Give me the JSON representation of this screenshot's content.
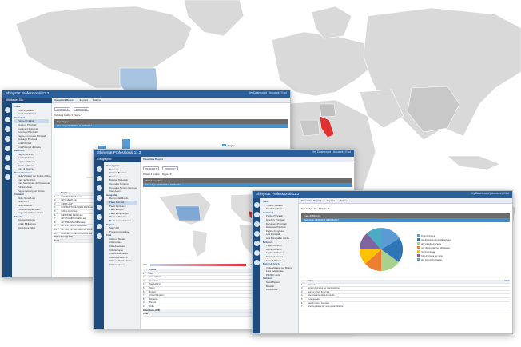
{
  "windows": [
    {
      "app_title": "Shinystat Professional 11.3",
      "user_menu": "My Dashboard | Account | Esci",
      "section": "Attività del Sito",
      "tabs": [
        "Visualizza Report",
        "Esporta",
        "Stampa"
      ],
      "filter": {
        "date_from": "01/06/2017",
        "date_to": "30/06/2017",
        "options": [
          "Tabella",
          "Grafico",
          "Pagine"
        ]
      },
      "panel_title": "Top Pagine",
      "panel_subtitle": "Data range: 01/06/2017 to 30/06/2017",
      "tree": [
        {
          "group": "Visite",
          "items": [
            "Visite & Visitatori",
            "Trend dei Visitatori"
          ]
        },
        {
          "group": "Contenuti",
          "items": [
            "Pagine Principali",
            "Directory Principali",
            "Documenti Principali",
            "Download Principali",
            "Pagine di Ingresso Principali",
            "Messaggi Principali",
            "Link Principali",
            "Link Principali di Uscita"
          ]
        },
        {
          "group": "Referrers",
          "items": [
            "Pagine Referrer",
            "Domini Referrer",
            "Engine di Ricerca",
            "Parole di Ricerca",
            "Frasi di Ricerca"
          ]
        },
        {
          "group": "Motori di ricerca",
          "items": [
            "Visite/Visitatori per Motore di Ricerca",
            "Frasi nell'Indirizzo",
            "Frasi Selezionate dall'Assistente",
            "Pubblici Utenti",
            "Pagine Landing per Motore"
          ]
        },
        {
          "group": "Visitatori",
          "items": [
            "Visite Nuove/Loro",
            "Visite in CT",
            "Visite Ripetute",
            "Provenienza per Stato",
            "Lingue/Locali/Fuso Orario"
          ]
        },
        {
          "group": "Sistema",
          "items": [
            "Browser/Versione",
            "Link in Bibliografia",
            "Risoluzione Video"
          ]
        }
      ],
      "chart": {
        "categories": [
          "1",
          "2",
          "3"
        ],
        "legend": [
          "Pagine",
          "Visualizzazioni"
        ]
      },
      "table_header": [
        "",
        "Pagina",
        "",
        ""
      ],
      "rows": [
        [
          "1",
          "/CONTENITORE 1.asp",
          "",
          ""
        ],
        [
          "2",
          "/SITO MENU.asp",
          "",
          ""
        ],
        [
          "3",
          "/INDEX.ASP",
          "",
          ""
        ],
        [
          "4",
          "/CONTENITORE NEWS MENU.asp",
          "",
          ""
        ],
        [
          "5",
          "/CATALOGO/.asp",
          "",
          ""
        ],
        [
          "6",
          "/GESTIONE MENU.asp",
          "",
          ""
        ],
        [
          "7",
          "/SITO/COMPRA MENU.asp",
          "",
          ""
        ],
        [
          "8",
          "/SITO/SERVIZI MENU.asp",
          "",
          ""
        ],
        [
          "9",
          "/SITO STORICO MENU.asp",
          "",
          ""
        ],
        [
          "10",
          "/SITO/ATTIVITA/FIDELIZZA MENU.asp",
          "",
          ""
        ],
        [
          "11",
          "/CONTENITORE CATALOGO.asp",
          "",
          ""
        ]
      ],
      "footer": [
        "Other Items (1258)",
        "Total"
      ]
    },
    {
      "app_title": "Shinystat Professional 11.3",
      "user_menu": "My Dashboard | Account | Esci",
      "section": "Geographic",
      "tabs": [
        "Visualizza Report"
      ],
      "filter": {
        "date_from": "01/06/2017",
        "date_to": "30/06/2017",
        "options": [
          "Tabella",
          "Grafico",
          "Regioni"
        ]
      },
      "panel_title": "World Countries",
      "panel_subtitle": "Data range: 01/06/2017 to 30/06/2017",
      "tree": [
        {
          "group": "User Agents",
          "items": [
            "Browsers",
            "Versioni Browser",
            "Browser",
            "Browser Maiuscoli",
            "Operating Systems",
            "Operating System Versions",
            "User Agents"
          ]
        },
        {
          "group": "Geografia",
          "items": [
            "Regioni del Mondo",
            "Paesi Mondiali",
            "Paesi Continenti",
            "Paesi Europei",
            "Paesi Extraeuropei",
            "Paesi dell'Unione",
            "Paesi non Comunitari"
          ]
        },
        {
          "group": "Regioni",
          "items": [
            "Stati Uniti",
            "Provincia Canadese"
          ]
        },
        {
          "group": "Città",
          "items": [
            "Città nel Mondo",
            "Città Italiane",
            "Città Americane",
            "Città Europee",
            "Città Mediterranee",
            "Città Asia Pacifico",
            "Città nel Mondo Arabo",
            "Città Canadesi"
          ]
        }
      ],
      "scale": {
        "min": "450",
        "max": "78.906"
      },
      "table_header": [
        "",
        "Country",
        "Visite Visualizzazioni",
        ""
      ],
      "rows": [
        [
          "1",
          "Italy",
          "78.906",
          "42.99%"
        ],
        [
          "2",
          "United States",
          "4.577",
          "2.49%"
        ],
        [
          "3",
          "Germany",
          "2.448",
          "1.33%"
        ],
        [
          "4",
          "Switzerland",
          "1.715",
          "0.93%"
        ],
        [
          "5",
          "Spain",
          "970",
          "0.53%"
        ],
        [
          "6",
          "France",
          "938",
          "0.51%"
        ],
        [
          "7",
          "United Kingdom",
          "729",
          "0.40%"
        ],
        [
          "8",
          "Romania",
          "725",
          "0.40%"
        ],
        [
          "9",
          "Poland",
          "569",
          "0.31%"
        ],
        [
          "10",
          "India",
          "450",
          "0.25%"
        ]
      ],
      "footer": [
        "Other Items (178)",
        "Total"
      ]
    },
    {
      "app_title": "Shinystat Professional 11.3",
      "user_menu": "My Dashboard | Account | Esci",
      "tabs": [
        "Visualizza Report",
        "Esporta",
        "Stampa"
      ],
      "filter": {
        "options": [
          "Tabella",
          "Grafico",
          "Pagine"
        ]
      },
      "panel_title": "Frasi di Ricerca",
      "panel_subtitle": "Data range: 01/06/2017 to 30/06/2017",
      "tree": [
        {
          "group": "Visite",
          "items": [
            "Visite & Visitatori",
            "Trend dei Visitatori"
          ]
        },
        {
          "group": "Contenuti",
          "items": [
            "Pagine Principali",
            "Directory Principali",
            "Documenti Principali",
            "Download Principali",
            "Pagine di Ingresso",
            "Link Principali",
            "Link Principali in Uscita"
          ]
        },
        {
          "group": "Referrers",
          "items": [
            "Pagine Referrer",
            "Domini Referrer",
            "Engine di Ricerca",
            "Parole di Ricerca",
            "Frasi di Ricerca"
          ]
        },
        {
          "group": "Motori di ricerca",
          "items": [
            "Visite/Visitatori per Motore",
            "Frasi Selezionate",
            "Pubblici Utenti"
          ]
        },
        {
          "group": "Visitatori",
          "items": [
            "Nuovi/Ripetuti",
            "Browser",
            "Risoluzione"
          ]
        }
      ],
      "legend": [
        "Frasi di ricerca",
        "pianificazione domanda per voce",
        "alta velocità di ricerca",
        "non disponibile (non dichiarato)",
        "ricerca guidata",
        "frasi di ricerca per voce",
        "altri ricerca di dettaglio"
      ],
      "table_header": [
        "",
        "Frase",
        "",
        "Visite"
      ],
      "rows": [
        [
          "1",
          "(not set)",
          "",
          ""
        ],
        [
          "2",
          "termini di ricerca per pianificazione",
          "",
          ""
        ],
        [
          "3",
          "ricerca veloce di termini",
          "",
          ""
        ],
        [
          "4",
          "pianificazione della domanda",
          "",
          ""
        ],
        [
          "5",
          "voce guidata",
          "",
          ""
        ],
        [
          "6",
          "frasi di ricerca correlate",
          "",
          ""
        ],
        [
          "7",
          "ricerca guidata per voce e pianificazione",
          "",
          ""
        ]
      ]
    }
  ],
  "colors": {
    "header": "#2a5e9a",
    "sidebar": "#1f4a7c",
    "bar_blue": "#5b9bd5",
    "bar_orange": "#f0a05a",
    "map_land": "#d9d9d9",
    "map_usa": "#a8c4e0",
    "map_italy": "#e03030"
  }
}
